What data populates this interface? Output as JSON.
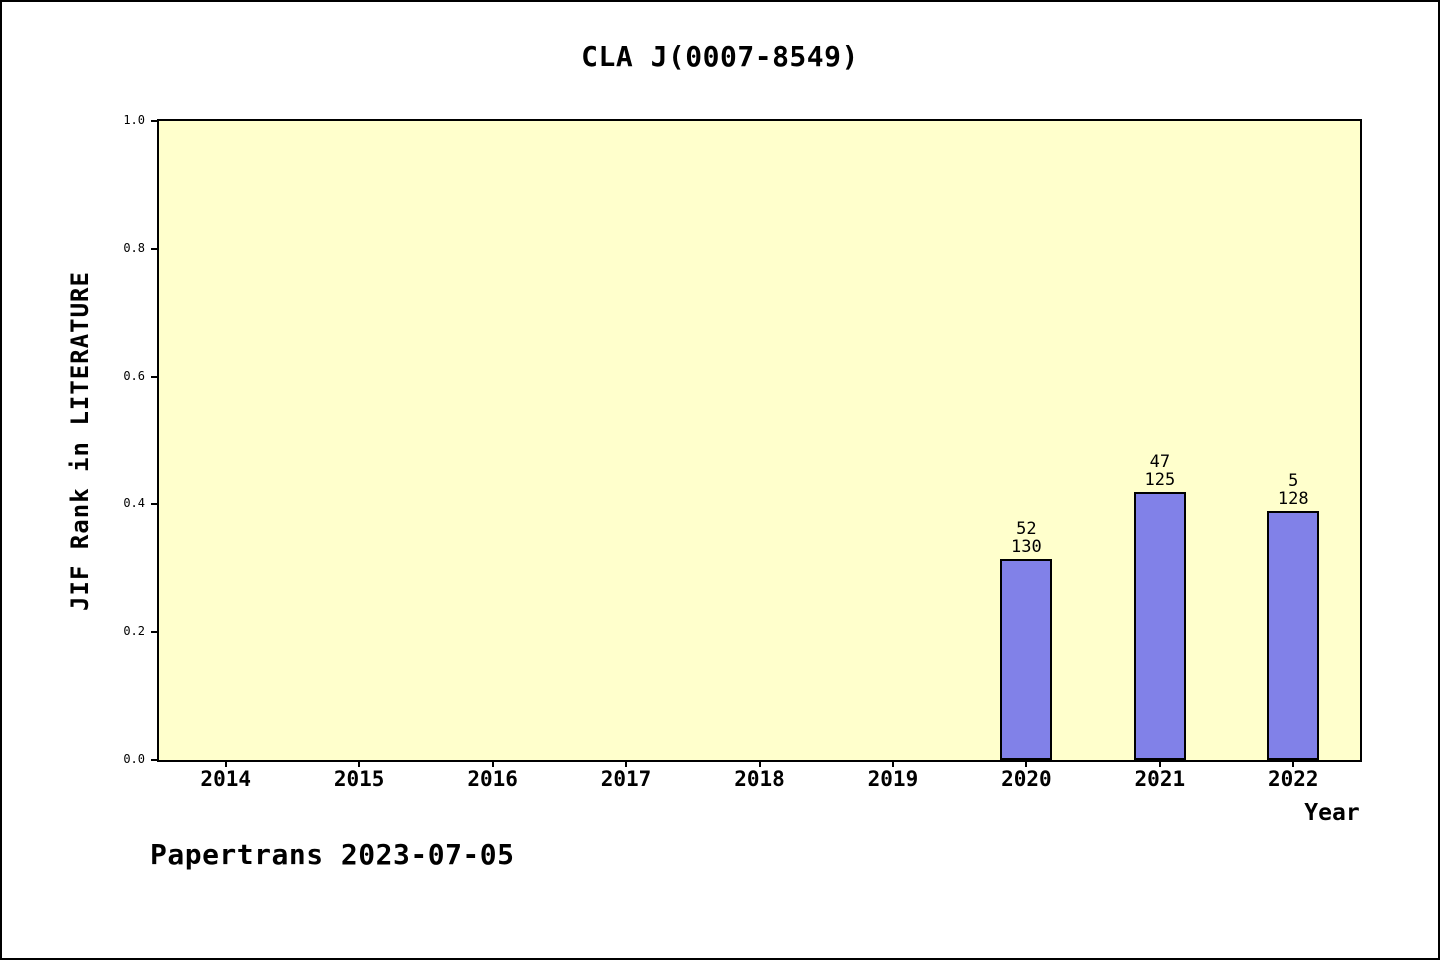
{
  "window": {
    "background": "#ffffff",
    "border_color": "#000000"
  },
  "chart_data": {
    "type": "bar",
    "title": "CLA J(0007-8549)",
    "xlabel": "Year",
    "ylabel": "JIF Rank in LITERATURE",
    "categories": [
      "2014",
      "2015",
      "2016",
      "2017",
      "2018",
      "2019",
      "2020",
      "2021",
      "2022"
    ],
    "values": [
      null,
      null,
      null,
      null,
      null,
      null,
      0.315,
      0.42,
      0.39
    ],
    "bar_annotations": [
      null,
      null,
      null,
      null,
      null,
      null,
      {
        "rank": "52",
        "total": "130"
      },
      {
        "rank": "47",
        "total": "125"
      },
      {
        "rank": "5",
        "total": "128"
      }
    ],
    "ylim": [
      0.0,
      1.0
    ],
    "yticks": [
      0.0,
      0.2,
      0.4,
      0.6,
      0.8,
      1.0
    ],
    "ytick_labels": [
      "0.0",
      "0.2",
      "0.4",
      "0.6",
      "0.8",
      "1.0"
    ],
    "grid": false,
    "legend": null,
    "plot_background": "#ffffcc",
    "bar_color": "#8181e8",
    "bar_border_color": "#000000",
    "axis_color": "#000000"
  },
  "footer": {
    "label": "Papertrans 2023-07-05"
  }
}
